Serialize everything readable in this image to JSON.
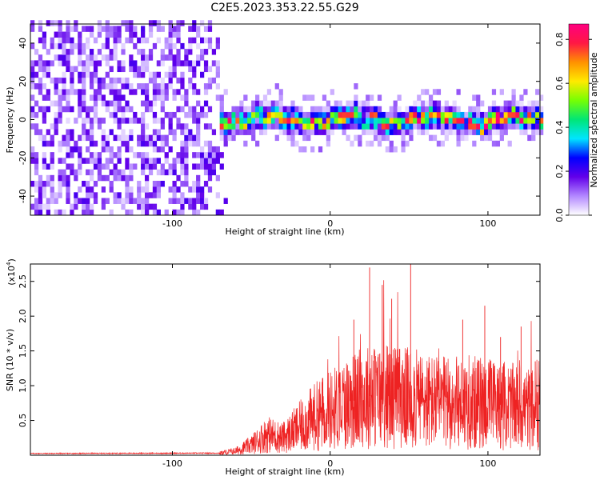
{
  "page_title": "C2E5.2023.353.22.55.G29",
  "chart_data": [
    {
      "type": "heatmap",
      "xlabel": "Height of straight line (km)",
      "ylabel": "Frequency (Hz)",
      "xlim": [
        -190,
        133
      ],
      "ylim": [
        -50,
        50
      ],
      "x_ticks": [
        -100,
        0,
        100
      ],
      "y_ticks": [
        -40,
        -20,
        0,
        20,
        40
      ],
      "colorbar": {
        "label": "Normalized spectral amplitude",
        "range": [
          0.0,
          0.87
        ],
        "ticks": [
          0.0,
          0.2,
          0.4,
          0.6,
          0.8
        ],
        "colors": [
          "#ffffff",
          "#b388ff",
          "#6200ea",
          "#0000ff",
          "#00e5ff",
          "#00e676",
          "#76ff03",
          "#ffea00",
          "#ff9100",
          "#ff1744",
          "#ff0080"
        ]
      },
      "regions": [
        {
          "name": "noise",
          "x_range": [
            -190,
            -65
          ],
          "y_range": [
            -50,
            50
          ],
          "level": 0.08
        },
        {
          "name": "signal-band",
          "x_range": [
            -70,
            133
          ],
          "center_hz": 0,
          "half_width_hz": 8,
          "level": 0.5
        }
      ]
    },
    {
      "type": "line",
      "xlabel": "Height of straight line (km)",
      "ylabel": "SNR (10 * v/v)",
      "y_multiplier_label": "(x10",
      "y_multiplier_exp": "4",
      "y_multiplier_close": ")",
      "xlim": [
        -190,
        133
      ],
      "ylim": [
        0,
        27500
      ],
      "x_ticks": [
        -100,
        0,
        100
      ],
      "y_ticks": [
        5000,
        10000,
        15000,
        20000,
        25000
      ],
      "y_tick_labels": [
        "0.5",
        "1.0",
        "1.5",
        "2.0",
        "2.5"
      ],
      "color": "#ee2222",
      "profile": [
        {
          "x": -190,
          "y": 250
        },
        {
          "x": -70,
          "y": 300
        },
        {
          "x": -60,
          "y": 600
        },
        {
          "x": -50,
          "y": 1500
        },
        {
          "x": -40,
          "y": 3000
        },
        {
          "x": -30,
          "y": 2500
        },
        {
          "x": -20,
          "y": 4000
        },
        {
          "x": -10,
          "y": 5500
        },
        {
          "x": 0,
          "y": 6500
        },
        {
          "x": 10,
          "y": 7500
        },
        {
          "x": 25,
          "y": 8500
        },
        {
          "x": 40,
          "y": 8500
        },
        {
          "x": 55,
          "y": 8000
        },
        {
          "x": 70,
          "y": 7500
        },
        {
          "x": 85,
          "y": 7500
        },
        {
          "x": 100,
          "y": 7500
        },
        {
          "x": 115,
          "y": 7000
        },
        {
          "x": 133,
          "y": 6500
        }
      ],
      "peaks": [
        {
          "x": 25,
          "y": 27000
        },
        {
          "x": 33,
          "y": 24500
        },
        {
          "x": 39,
          "y": 22500
        },
        {
          "x": 51,
          "y": 27500
        },
        {
          "x": 15,
          "y": 19500
        },
        {
          "x": 84,
          "y": 19500
        },
        {
          "x": 98,
          "y": 21500
        },
        {
          "x": 108,
          "y": 17000
        },
        {
          "x": 121,
          "y": 18500
        },
        {
          "x": 130,
          "y": 13500
        }
      ]
    }
  ]
}
